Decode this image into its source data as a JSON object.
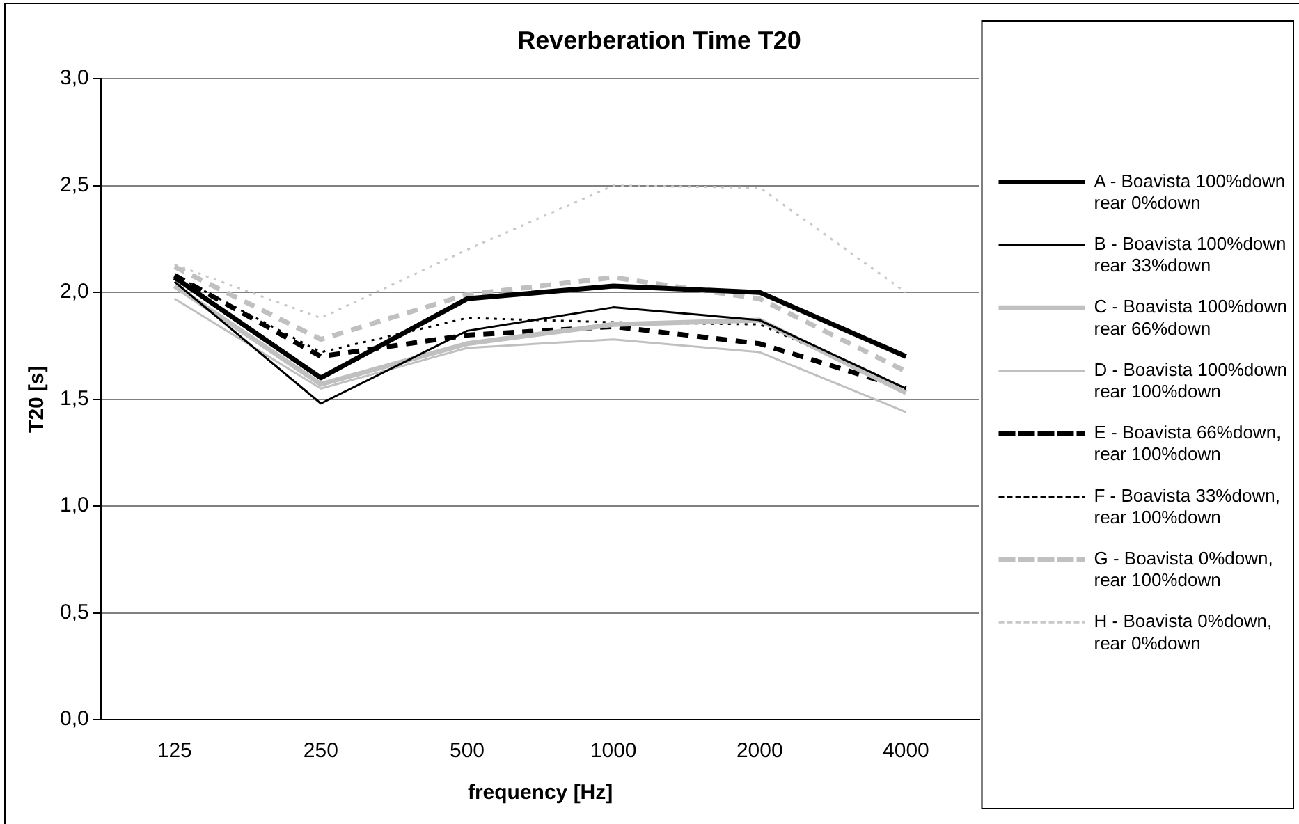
{
  "chart_data": {
    "type": "line",
    "title": "Reverberation Time T20",
    "xlabel": "frequency [Hz]",
    "ylabel": "T20 [s]",
    "categories": [
      "125",
      "250",
      "500",
      "1000",
      "2000",
      "4000"
    ],
    "series": [
      {
        "name": "A - Boavista 100%down rear 0%down",
        "color": "#000000",
        "line_style": "solid",
        "values": [
          2.07,
          1.6,
          1.97,
          2.03,
          2.0,
          1.7
        ]
      },
      {
        "name": "B - Boavista 100%down rear 33%down",
        "color": "#000000",
        "line_style": "solid",
        "values": [
          2.05,
          1.48,
          1.82,
          1.93,
          1.87,
          1.55
        ]
      },
      {
        "name": "C - Boavista 100%down rear 66%down",
        "color": "#c0c0c0",
        "line_style": "solid",
        "values": [
          2.03,
          1.57,
          1.76,
          1.85,
          1.87,
          1.53
        ]
      },
      {
        "name": "D - Boavista 100%down rear 100%down",
        "color": "#c0c0c0",
        "line_style": "solid",
        "values": [
          1.97,
          1.55,
          1.74,
          1.78,
          1.72,
          1.44
        ]
      },
      {
        "name": "E - Boavista 66%down, rear 100%down",
        "color": "#000000",
        "line_style": "dashed",
        "values": [
          2.08,
          1.7,
          1.8,
          1.84,
          1.76,
          1.55
        ]
      },
      {
        "name": "F - Boavista 33%down, rear 100%down",
        "color": "#000000",
        "line_style": "dotted",
        "values": [
          2.08,
          1.72,
          1.88,
          1.86,
          1.85,
          1.55
        ]
      },
      {
        "name": "G - Boavista 0%down, rear 100%down",
        "color": "#c0c0c0",
        "line_style": "dashed",
        "values": [
          2.12,
          1.78,
          1.99,
          2.07,
          1.97,
          1.63
        ]
      },
      {
        "name": "H - Boavista 0%down, rear 0%down",
        "color": "#c8c8c8",
        "line_style": "dotted",
        "values": [
          2.13,
          1.88,
          2.2,
          2.5,
          2.49,
          2.0
        ]
      }
    ],
    "ylim": [
      0,
      3
    ],
    "yticks": [
      {
        "value": 0,
        "label": "0,0"
      },
      {
        "value": 0.5,
        "label": "0,5"
      },
      {
        "value": 1,
        "label": "1,0"
      },
      {
        "value": 1.5,
        "label": "1,5"
      },
      {
        "value": 2,
        "label": "2,0"
      },
      {
        "value": 2.5,
        "label": "2,5"
      },
      {
        "value": 3,
        "label": "3,0"
      }
    ],
    "grid": "y",
    "legend": "right",
    "marker": "none"
  }
}
